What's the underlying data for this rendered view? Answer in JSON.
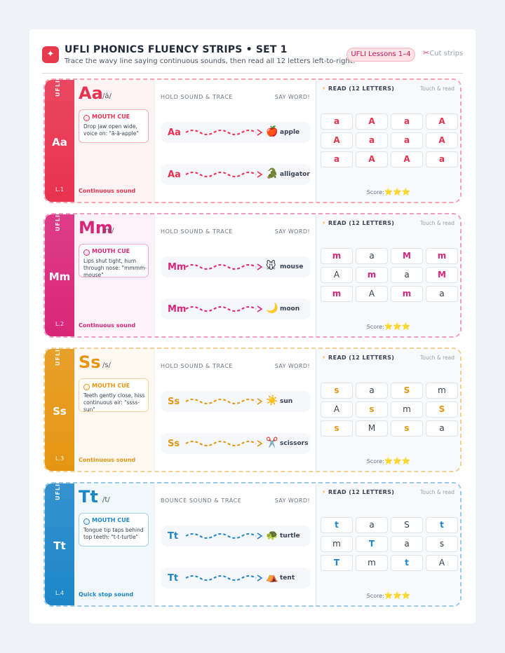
{
  "header": {
    "icon": "sparkle-icon",
    "title": "UFLI PHONICS FLUENCY STRIPS • SET 1",
    "subtitle": "Trace the wavy line saying continuous sounds, then read all 12 letters left-to-right!",
    "lessons_badge": "UFLI Lessons 1–4",
    "cut_label": "Cut strips"
  },
  "common": {
    "mouth_cue_label": "MOUTH CUE",
    "say_word": "SAY WORD!",
    "read_label": "READ (12 LETTERS)",
    "touch_label": "Touch & read",
    "score_label": "Score:",
    "score_stars": "⭐⭐⭐",
    "brand": "UFLI"
  },
  "strips": [
    {
      "letter": "Aa",
      "grapheme": "Aa",
      "phoneme": "/ă/",
      "lesson": "L.1",
      "color": "#e8324f",
      "mouth_cue": "Drop jaw open wide, voice on: \"ă-ă-apple\"",
      "sound_type": "Continuous sound",
      "trace_header": "HOLD SOUND & TRACE",
      "words": [
        {
          "grapheme": "Aa",
          "emoji": "🍎",
          "word": "apple"
        },
        {
          "grapheme": "Aa",
          "emoji": "🐊",
          "word": "alligator"
        }
      ],
      "letters": [
        "a",
        "A",
        "a",
        "A",
        "A",
        "a",
        "a",
        "A",
        "a",
        "A",
        "A",
        "a"
      ],
      "highlighted": [
        true,
        true,
        true,
        true,
        true,
        true,
        true,
        true,
        true,
        true,
        true,
        true
      ]
    },
    {
      "letter": "Mm",
      "grapheme": "Mm",
      "phoneme": "/m/",
      "lesson": "L.2",
      "color": "#d9267b",
      "mouth_cue": "Lips shut tight, hum through nose: \"mmmm-mouse\"",
      "sound_type": "Continuous sound",
      "trace_header": "HOLD SOUND & TRACE",
      "words": [
        {
          "grapheme": "Mm",
          "emoji": "🐭",
          "word": "mouse"
        },
        {
          "grapheme": "Mm",
          "emoji": "🌙",
          "word": "moon"
        }
      ],
      "letters": [
        "m",
        "a",
        "M",
        "m",
        "A",
        "m",
        "a",
        "M",
        "m",
        "A",
        "m",
        "a"
      ],
      "highlighted": [
        true,
        false,
        true,
        true,
        false,
        true,
        false,
        true,
        true,
        false,
        true,
        false
      ]
    },
    {
      "letter": "Ss",
      "grapheme": "Ss",
      "phoneme": "/s/",
      "lesson": "L.3",
      "color": "#e59512",
      "mouth_cue": "Teeth gently close, hiss continuous air: \"ssss-sun\"",
      "sound_type": "Continuous sound",
      "trace_header": "HOLD SOUND & TRACE",
      "words": [
        {
          "grapheme": "Ss",
          "emoji": "☀️",
          "word": "sun"
        },
        {
          "grapheme": "Ss",
          "emoji": "✂️",
          "word": "scissors"
        }
      ],
      "letters": [
        "s",
        "a",
        "S",
        "m",
        "A",
        "s",
        "m",
        "S",
        "s",
        "M",
        "s",
        "a"
      ],
      "highlighted": [
        true,
        false,
        true,
        false,
        false,
        true,
        false,
        true,
        true,
        false,
        true,
        false
      ]
    },
    {
      "letter": "Tt",
      "grapheme": "Tt",
      "phoneme": "/t/",
      "lesson": "L.4",
      "color": "#1d86c8",
      "mouth_cue": "Tongue tip taps behind top teeth: \"t-t-turtle\"",
      "sound_type": "Quick stop sound",
      "trace_header": "BOUNCE SOUND & TRACE",
      "words": [
        {
          "grapheme": "Tt",
          "emoji": "🐢",
          "word": "turtle"
        },
        {
          "grapheme": "Tt",
          "emoji": "⛺",
          "word": "tent"
        }
      ],
      "letters": [
        "t",
        "a",
        "S",
        "t",
        "m",
        "T",
        "a",
        "s",
        "T",
        "m",
        "t",
        "A"
      ],
      "highlighted": [
        true,
        false,
        false,
        true,
        false,
        true,
        false,
        false,
        true,
        false,
        true,
        false
      ]
    }
  ]
}
